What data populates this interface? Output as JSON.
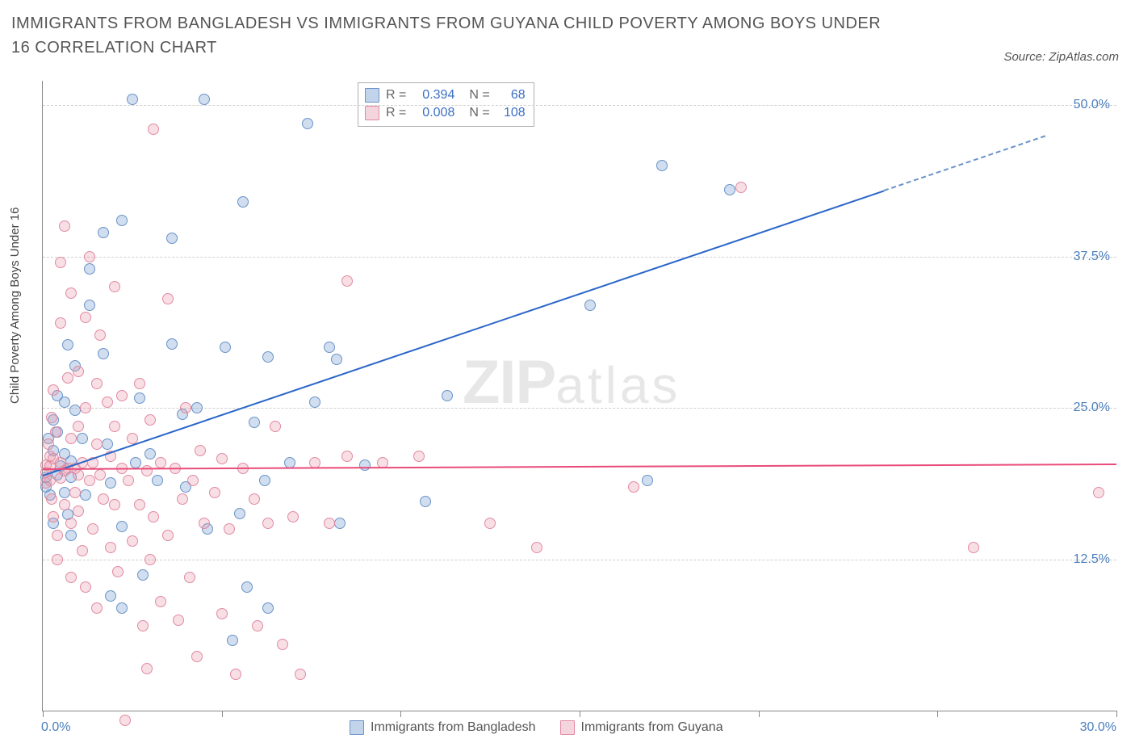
{
  "title": "IMMIGRANTS FROM BANGLADESH VS IMMIGRANTS FROM GUYANA CHILD POVERTY AMONG BOYS UNDER 16 CORRELATION CHART",
  "source": "Source: ZipAtlas.com",
  "y_axis_label": "Child Poverty Among Boys Under 16",
  "watermark_zip": "ZIP",
  "watermark_atlas": "atlas",
  "chart": {
    "type": "scatter",
    "x_domain": [
      0,
      30
    ],
    "y_domain": [
      0,
      52
    ],
    "x_ticks": [
      0,
      5,
      10,
      15,
      20,
      25,
      30
    ],
    "x_tick_labels": {
      "0": "0.0%",
      "30": "30.0%"
    },
    "y_ticks": [
      12.5,
      25.0,
      37.5,
      50.0
    ],
    "y_tick_labels": [
      "12.5%",
      "25.0%",
      "37.5%",
      "50.0%"
    ],
    "grid_color": "#d0d0d0",
    "axis_color": "#888888",
    "background": "#ffffff",
    "series": [
      {
        "name": "Immigrants from Bangladesh",
        "color_fill": "rgba(120,160,210,0.35)",
        "color_stroke": "#6a93c8",
        "trend_color": "#2a66c8",
        "R": "0.394",
        "N": "68",
        "trend": {
          "x1": 0,
          "y1": 19.5,
          "x2": 23.5,
          "y2": 43,
          "dash_to_x": 28,
          "dash_to_y": 47.5
        },
        "points": [
          [
            0.1,
            18.5
          ],
          [
            0.1,
            19.3
          ],
          [
            0.2,
            17.8
          ],
          [
            0.3,
            21.5
          ],
          [
            0.3,
            15.5
          ],
          [
            0.4,
            23
          ],
          [
            0.4,
            19.5
          ],
          [
            0.4,
            26
          ],
          [
            0.3,
            24
          ],
          [
            0.15,
            22.5
          ],
          [
            0.6,
            25.5
          ],
          [
            0.7,
            30.2
          ],
          [
            0.9,
            28.5
          ],
          [
            0.5,
            20.2
          ],
          [
            0.6,
            18.0
          ],
          [
            0.7,
            16.2
          ],
          [
            0.8,
            14.5
          ],
          [
            0.8,
            20.6
          ],
          [
            0.8,
            19.3
          ],
          [
            0.6,
            21.2
          ],
          [
            0.9,
            24.8
          ],
          [
            1.1,
            22.5
          ],
          [
            1.2,
            17.8
          ],
          [
            1.3,
            36.5
          ],
          [
            1.3,
            33.5
          ],
          [
            1.7,
            29.5
          ],
          [
            1.7,
            39.5
          ],
          [
            1.8,
            22.0
          ],
          [
            1.9,
            18.8
          ],
          [
            1.9,
            9.5
          ],
          [
            2.2,
            15.2
          ],
          [
            2.2,
            8.5
          ],
          [
            2.2,
            40.5
          ],
          [
            2.5,
            50.5
          ],
          [
            2.6,
            20.5
          ],
          [
            2.7,
            25.8
          ],
          [
            2.8,
            11.2
          ],
          [
            3.0,
            21.2
          ],
          [
            3.2,
            19.0
          ],
          [
            3.6,
            30.3
          ],
          [
            3.6,
            39.0
          ],
          [
            3.9,
            24.5
          ],
          [
            4.0,
            18.5
          ],
          [
            4.3,
            25.0
          ],
          [
            4.5,
            50.5
          ],
          [
            4.6,
            15.0
          ],
          [
            5.1,
            30.0
          ],
          [
            5.3,
            5.8
          ],
          [
            5.5,
            16.3
          ],
          [
            5.6,
            42.0
          ],
          [
            5.7,
            10.2
          ],
          [
            5.9,
            23.8
          ],
          [
            6.2,
            19.0
          ],
          [
            6.3,
            8.5
          ],
          [
            6.3,
            29.2
          ],
          [
            6.9,
            20.5
          ],
          [
            7.4,
            48.5
          ],
          [
            7.6,
            25.5
          ],
          [
            8.0,
            30.0
          ],
          [
            8.2,
            29.0
          ],
          [
            8.3,
            15.5
          ],
          [
            9.0,
            20.3
          ],
          [
            10.7,
            17.3
          ],
          [
            11.3,
            26.0
          ],
          [
            15.3,
            33.5
          ],
          [
            16.9,
            19.0
          ],
          [
            17.3,
            45.0
          ],
          [
            19.2,
            43.0
          ]
        ]
      },
      {
        "name": "Immigrants from Guyana",
        "color_fill": "rgba(230,150,170,0.30)",
        "color_stroke": "#e28aa0",
        "trend_color": "#e94b7a",
        "R": "0.008",
        "N": "108",
        "trend": {
          "x1": 0,
          "y1": 20.0,
          "x2": 30,
          "y2": 20.4
        },
        "points": [
          [
            0.1,
            19.7
          ],
          [
            0.1,
            20.3
          ],
          [
            0.1,
            18.8
          ],
          [
            0.2,
            21.0
          ],
          [
            0.15,
            22.0
          ],
          [
            0.2,
            19.0
          ],
          [
            0.2,
            20.2
          ],
          [
            0.25,
            17.5
          ],
          [
            0.25,
            24.2
          ],
          [
            0.3,
            26.5
          ],
          [
            0.3,
            16.0
          ],
          [
            0.3,
            20.8
          ],
          [
            0.35,
            23.0
          ],
          [
            0.4,
            14.5
          ],
          [
            0.4,
            12.5
          ],
          [
            0.5,
            20.5
          ],
          [
            0.5,
            19.2
          ],
          [
            0.5,
            32.0
          ],
          [
            0.5,
            37.0
          ],
          [
            0.6,
            19.8
          ],
          [
            0.6,
            17.0
          ],
          [
            0.6,
            40.0
          ],
          [
            0.7,
            27.5
          ],
          [
            0.7,
            20.0
          ],
          [
            0.8,
            15.5
          ],
          [
            0.8,
            22.5
          ],
          [
            0.8,
            11.0
          ],
          [
            0.8,
            34.5
          ],
          [
            0.9,
            20.0
          ],
          [
            0.9,
            18.0
          ],
          [
            1.0,
            19.5
          ],
          [
            1.0,
            16.5
          ],
          [
            1.0,
            23.5
          ],
          [
            1.0,
            28.0
          ],
          [
            1.1,
            13.2
          ],
          [
            1.1,
            20.5
          ],
          [
            1.2,
            32.5
          ],
          [
            1.2,
            25.0
          ],
          [
            1.2,
            10.2
          ],
          [
            1.3,
            19.0
          ],
          [
            1.3,
            37.5
          ],
          [
            1.4,
            20.5
          ],
          [
            1.4,
            15.0
          ],
          [
            1.5,
            22.0
          ],
          [
            1.5,
            27.0
          ],
          [
            1.5,
            8.5
          ],
          [
            1.6,
            19.5
          ],
          [
            1.6,
            31.0
          ],
          [
            1.7,
            17.5
          ],
          [
            1.8,
            25.5
          ],
          [
            1.9,
            21.0
          ],
          [
            1.9,
            13.5
          ],
          [
            2.0,
            23.5
          ],
          [
            2.0,
            17.0
          ],
          [
            2.0,
            35.0
          ],
          [
            2.1,
            11.5
          ],
          [
            2.2,
            20.0
          ],
          [
            2.2,
            26.0
          ],
          [
            2.3,
            -0.8
          ],
          [
            2.4,
            19.0
          ],
          [
            2.5,
            14.0
          ],
          [
            2.5,
            22.5
          ],
          [
            2.7,
            17.0
          ],
          [
            2.7,
            27.0
          ],
          [
            2.8,
            7.0
          ],
          [
            2.9,
            3.5
          ],
          [
            2.9,
            19.8
          ],
          [
            3.0,
            12.5
          ],
          [
            3.0,
            24.0
          ],
          [
            3.1,
            16.0
          ],
          [
            3.3,
            9.0
          ],
          [
            3.3,
            20.5
          ],
          [
            3.5,
            34.0
          ],
          [
            3.5,
            14.5
          ],
          [
            3.7,
            20.0
          ],
          [
            3.8,
            7.5
          ],
          [
            3.9,
            17.5
          ],
          [
            4.0,
            25.0
          ],
          [
            4.1,
            11.0
          ],
          [
            4.2,
            19.0
          ],
          [
            4.3,
            4.5
          ],
          [
            4.4,
            21.5
          ],
          [
            4.5,
            15.5
          ],
          [
            4.8,
            18.0
          ],
          [
            5.0,
            8.0
          ],
          [
            5.0,
            20.8
          ],
          [
            5.2,
            15.0
          ],
          [
            5.4,
            3.0
          ],
          [
            5.6,
            20.0
          ],
          [
            5.9,
            17.5
          ],
          [
            6.0,
            7.0
          ],
          [
            6.3,
            15.5
          ],
          [
            6.5,
            23.5
          ],
          [
            6.7,
            5.5
          ],
          [
            7.0,
            16.0
          ],
          [
            7.2,
            3.0
          ],
          [
            7.6,
            20.5
          ],
          [
            8.0,
            15.5
          ],
          [
            8.5,
            21.0
          ],
          [
            8.5,
            35.5
          ],
          [
            9.5,
            20.5
          ],
          [
            10.5,
            21.0
          ],
          [
            12.5,
            15.5
          ],
          [
            13.8,
            13.5
          ],
          [
            16.5,
            18.5
          ],
          [
            19.5,
            43.2
          ],
          [
            26.0,
            13.5
          ],
          [
            29.5,
            18.0
          ],
          [
            3.1,
            48.0
          ]
        ]
      }
    ]
  },
  "legend": {
    "r_label": "R =",
    "n_label": "N =",
    "bottom": [
      {
        "swatch": "blue",
        "label": "Immigrants from Bangladesh"
      },
      {
        "swatch": "pink",
        "label": "Immigrants from Guyana"
      }
    ]
  }
}
